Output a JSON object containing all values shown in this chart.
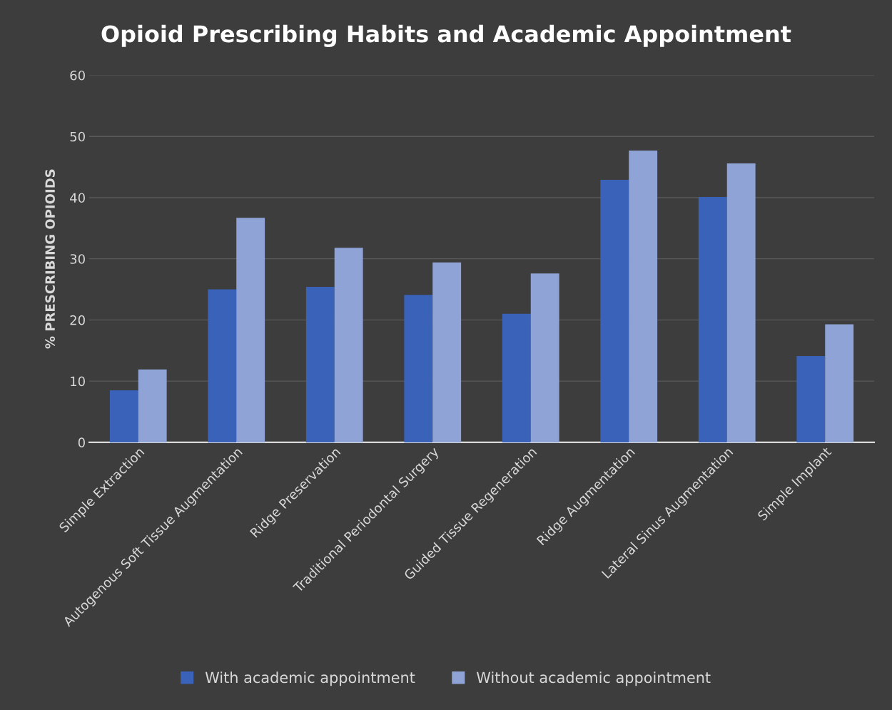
{
  "chart_data": {
    "type": "bar",
    "title": "Opioid Prescribing Habits and Academic Appointment",
    "ylabel": "% PRESCRIBING OPIOIDS",
    "categories": [
      "Simple Extraction",
      "Autogenous Soft Tissue Augmentation",
      "Ridge Preservation",
      "Traditional Periodontal Surgery",
      "Guided Tissue Regeneration",
      "Ridge Augmentation",
      "Lateral Sinus Augmentation",
      "Simple Implant"
    ],
    "series": [
      {
        "name": "With academic appointment",
        "color": "#3a62b8",
        "values": [
          8.5,
          25.0,
          25.4,
          24.1,
          21.0,
          42.9,
          40.1,
          14.1
        ]
      },
      {
        "name": "Without academic appointment",
        "color": "#8fa3d6",
        "values": [
          11.9,
          36.7,
          31.8,
          29.4,
          27.6,
          47.7,
          45.6,
          19.3
        ]
      }
    ],
    "ylim": [
      0,
      60
    ],
    "yticks": [
      0,
      10,
      20,
      30,
      40,
      50,
      60
    ],
    "grid": "y",
    "legend": "bottom"
  }
}
